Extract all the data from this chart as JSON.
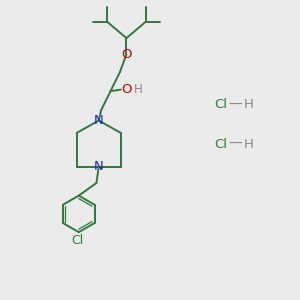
{
  "background_color": "#ebebeb",
  "bond_color": "#2d7a3a",
  "n_color": "#2222cc",
  "o_color": "#cc0000",
  "cl_color": "#2d7a3a",
  "h_color": "#888888",
  "figsize": [
    3.0,
    3.0
  ],
  "dpi": 100,
  "xlim": [
    0,
    10
  ],
  "ylim": [
    0,
    10
  ]
}
